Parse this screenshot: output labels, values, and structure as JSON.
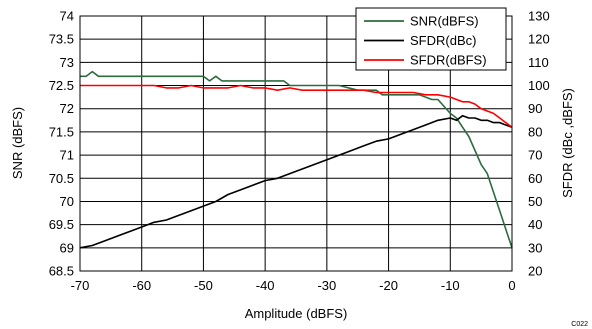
{
  "chart_data": {
    "type": "line",
    "xlabel": "Amplitude (dBFS)",
    "ylabel_left": "SNR (dBFS)",
    "ylabel_right": "SFDR (dBc ,dBFS)",
    "xlim": [
      -70,
      0
    ],
    "ylim_left": [
      68.5,
      74
    ],
    "ylim_right": [
      20,
      130
    ],
    "xticks": [
      "-70",
      "-60",
      "-50",
      "-40",
      "-30",
      "-20",
      "-10",
      "0"
    ],
    "yticks_left": [
      "68.5",
      "69",
      "69.5",
      "70",
      "70.5",
      "71",
      "71.5",
      "72",
      "72.5",
      "73",
      "73.5",
      "74"
    ],
    "yticks_right": [
      "20",
      "30",
      "40",
      "50",
      "60",
      "70",
      "80",
      "90",
      "100",
      "110",
      "120",
      "130"
    ],
    "grid": true,
    "legend_position": "top-right",
    "figure_code": "C022",
    "series": [
      {
        "name": "SNR(dBFS)",
        "axis": "left",
        "color": "#2e6b3e",
        "x": [
          -70,
          -69,
          -68,
          -67,
          -65,
          -60,
          -55,
          -50,
          -49,
          -48,
          -47,
          -45,
          -40,
          -37,
          -36,
          -34,
          -32,
          -30,
          -28,
          -25,
          -22,
          -21,
          -18,
          -15,
          -13,
          -12,
          -10,
          -9,
          -8,
          -7,
          -6,
          -5,
          -4,
          -3,
          -2,
          -1,
          0
        ],
        "values": [
          72.7,
          72.7,
          72.8,
          72.7,
          72.7,
          72.7,
          72.7,
          72.7,
          72.6,
          72.7,
          72.6,
          72.6,
          72.6,
          72.6,
          72.5,
          72.5,
          72.5,
          72.5,
          72.5,
          72.4,
          72.4,
          72.3,
          72.3,
          72.3,
          72.2,
          72.2,
          71.9,
          71.8,
          71.6,
          71.4,
          71.1,
          70.8,
          70.6,
          70.2,
          69.8,
          69.4,
          69.0
        ]
      },
      {
        "name": "SFDR(dBc)",
        "axis": "right",
        "color": "#000000",
        "x": [
          -70,
          -68,
          -66,
          -64,
          -62,
          -60,
          -58,
          -56,
          -54,
          -52,
          -50,
          -48,
          -46,
          -44,
          -42,
          -40,
          -38,
          -36,
          -34,
          -32,
          -30,
          -28,
          -26,
          -24,
          -22,
          -20,
          -18,
          -16,
          -14,
          -12,
          -10,
          -9,
          -8,
          -7,
          -6,
          -5,
          -4,
          -3,
          -2,
          -1,
          0
        ],
        "values": [
          30,
          31,
          33,
          35,
          37,
          39,
          41,
          42,
          44,
          46,
          48,
          50,
          53,
          55,
          57,
          59,
          60,
          62,
          64,
          66,
          68,
          70,
          72,
          74,
          76,
          77,
          79,
          81,
          83,
          85,
          86,
          85,
          87,
          86,
          86,
          85,
          85,
          84,
          84,
          83,
          82
        ]
      },
      {
        "name": "SFDR(dBFS)",
        "axis": "right",
        "color": "#ff0000",
        "x": [
          -70,
          -68,
          -66,
          -64,
          -62,
          -60,
          -58,
          -56,
          -54,
          -52,
          -50,
          -48,
          -46,
          -44,
          -42,
          -40,
          -38,
          -36,
          -34,
          -32,
          -30,
          -28,
          -26,
          -24,
          -22,
          -20,
          -18,
          -16,
          -14,
          -12,
          -10,
          -9,
          -8,
          -7,
          -6,
          -5,
          -4,
          -3,
          -2,
          -1,
          0
        ],
        "values": [
          100,
          100,
          100,
          100,
          100,
          100,
          100,
          99,
          99,
          100,
          99,
          99,
          99,
          100,
          99,
          99,
          98,
          99,
          98,
          98,
          98,
          98,
          98,
          98,
          97,
          97,
          97,
          97,
          96,
          96,
          95,
          94,
          93,
          93,
          92,
          90,
          89,
          88,
          86,
          84,
          82
        ]
      }
    ]
  }
}
